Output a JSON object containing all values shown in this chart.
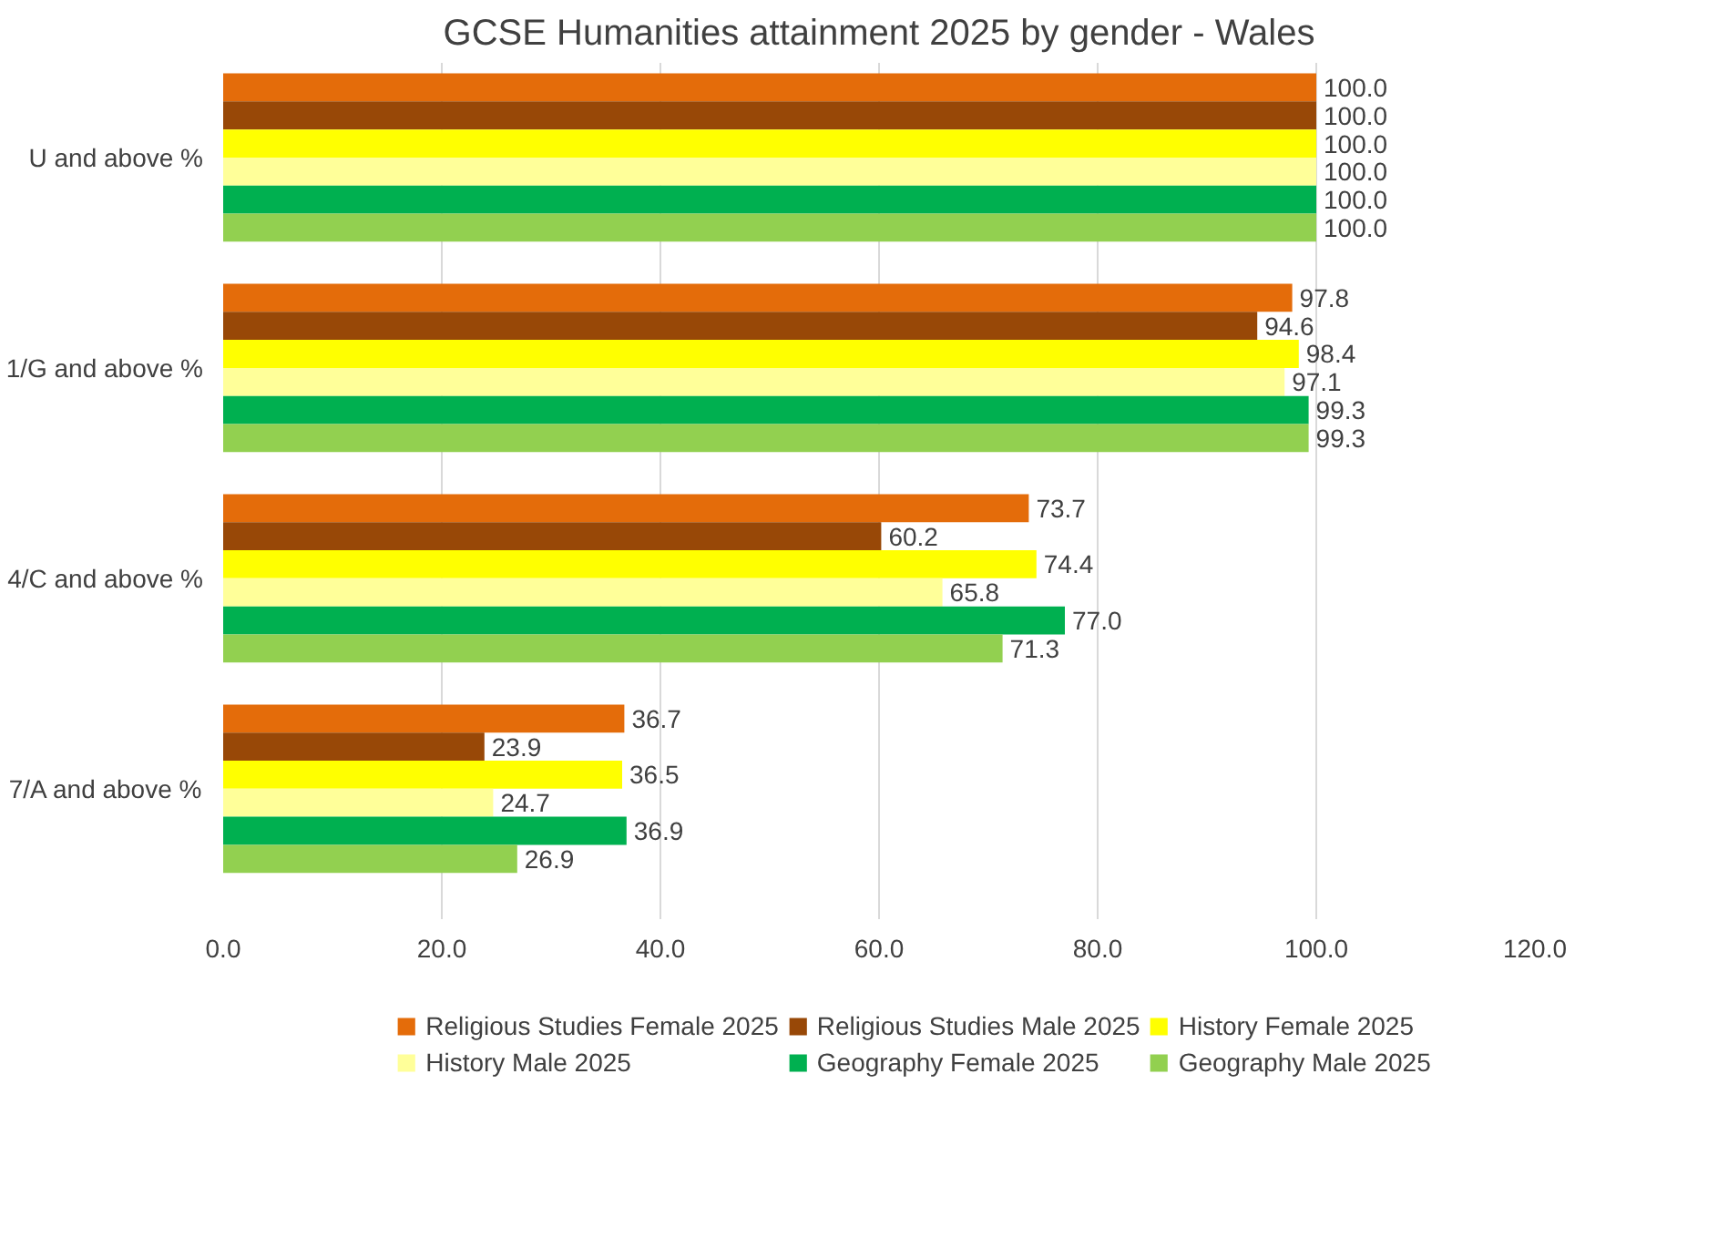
{
  "chart_data": {
    "type": "bar",
    "orientation": "horizontal",
    "title": "GCSE Humanities attainment 2025 by gender - Wales",
    "categories": [
      "U and above %",
      "1/G and above %",
      "4/C and above %",
      "7/A and above %"
    ],
    "series": [
      {
        "name": "Religious Studies Female 2025",
        "color": "#e46c0a",
        "values": [
          100.0,
          97.8,
          73.7,
          36.7
        ],
        "value_labels": [
          "100.0",
          "97.8",
          "73.7",
          "36.7"
        ]
      },
      {
        "name": "Religious Studies Male 2025",
        "color": "#984807",
        "values": [
          100.0,
          94.6,
          60.2,
          23.9
        ],
        "value_labels": [
          "100.0",
          "94.6",
          "60.2",
          "23.9"
        ]
      },
      {
        "name": "History Female 2025",
        "color": "#ffff00",
        "values": [
          100.0,
          98.4,
          74.4,
          36.5
        ],
        "value_labels": [
          "100.0",
          "98.4",
          "74.4",
          "36.5"
        ]
      },
      {
        "name": "History Male 2025",
        "color": "#ffff99",
        "values": [
          100.0,
          97.1,
          65.8,
          24.7
        ],
        "value_labels": [
          "100.0",
          "97.1",
          "65.8",
          "24.7"
        ]
      },
      {
        "name": "Geography Female 2025",
        "color": "#00b050",
        "values": [
          100.0,
          99.3,
          77.0,
          36.9
        ],
        "value_labels": [
          "100.0",
          "99.3",
          "77.0",
          "36.9"
        ]
      },
      {
        "name": "Geography Male 2025",
        "color": "#92d050",
        "values": [
          100.0,
          99.3,
          71.3,
          26.9
        ],
        "value_labels": [
          "100.0",
          "99.3",
          "71.3",
          "26.9"
        ]
      }
    ],
    "xlim": [
      0,
      120
    ],
    "xticks": [
      {
        "value": 0,
        "label": "0.0"
      },
      {
        "value": 20,
        "label": "20.0"
      },
      {
        "value": 40,
        "label": "40.0"
      },
      {
        "value": 60,
        "label": "60.0"
      },
      {
        "value": 80,
        "label": "80.0"
      },
      {
        "value": 100,
        "label": "100.0"
      },
      {
        "value": 120,
        "label": "120.0"
      }
    ],
    "grid": "x",
    "legend": "bottom"
  }
}
